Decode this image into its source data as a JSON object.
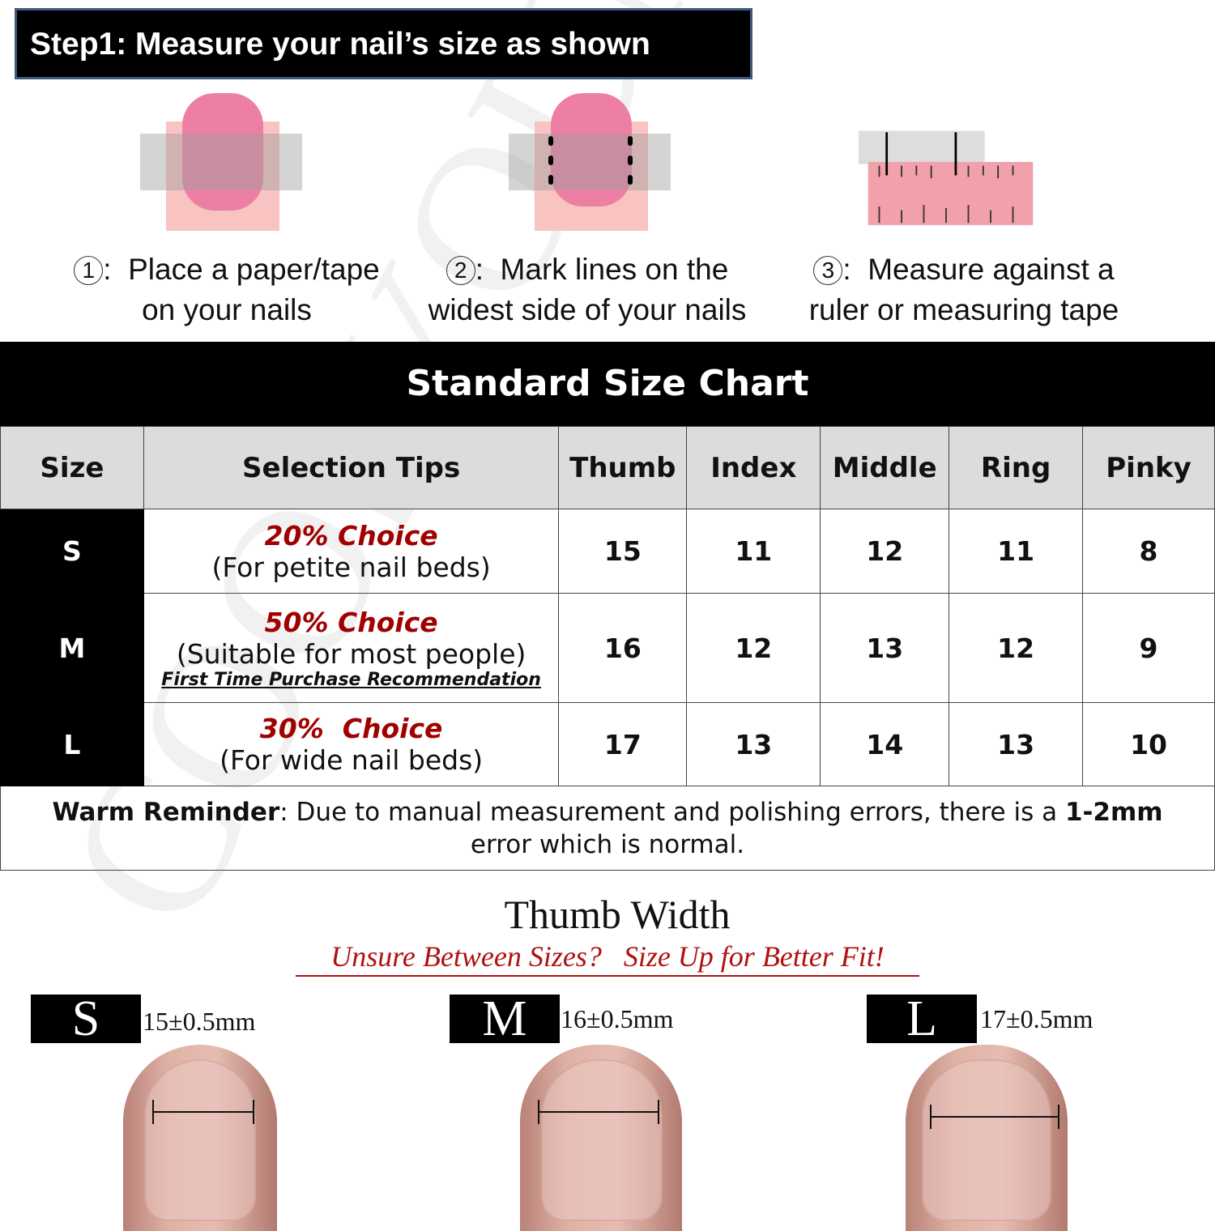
{
  "step_header": "Step1: Measure your nail’s size as shown",
  "steps": [
    {
      "num": "1",
      "text1": "Place a paper/tape",
      "text2": "on your nails"
    },
    {
      "num": "2",
      "text1": "Mark lines on the",
      "text2": "widest side of your nails"
    },
    {
      "num": "3",
      "text1": "Measure against a",
      "text2": "ruler or measuring tape"
    }
  ],
  "chart_title": "Standard Size Chart",
  "table": {
    "headers": [
      "Size",
      "Selection Tips",
      "Thumb",
      "Index",
      "Middle",
      "Ring",
      "Pinky"
    ],
    "rows": [
      {
        "size": "S",
        "choice": "20% Choice",
        "tip": "(For petite nail beds)",
        "values": [
          "15",
          "11",
          "12",
          "11",
          "8"
        ]
      },
      {
        "size": "M",
        "choice": "50% Choice",
        "tip": "(Suitable for most people)",
        "rec": "First Time Purchase Recommendation",
        "values": [
          "16",
          "12",
          "13",
          "12",
          "9"
        ]
      },
      {
        "size": "L",
        "choice": "30%  Choice",
        "tip": "(For wide nail beds)",
        "values": [
          "17",
          "13",
          "14",
          "13",
          "10"
        ]
      }
    ]
  },
  "reminder": {
    "bold": "Warm Reminder",
    "text": ": Due to manual measurement and polishing errors, there is a ",
    "bold2": "1-2mm",
    "text2": " error which is normal."
  },
  "thumb_width": {
    "title": "Thumb Width",
    "subtitle": "Unsure Between Sizes?   Size Up for Better Fit!",
    "sizes": [
      {
        "label": "S",
        "mm": "15±0.5mm"
      },
      {
        "label": "M",
        "mm": "16±0.5mm"
      },
      {
        "label": "L",
        "mm": "17±0.5mm"
      }
    ]
  },
  "watermark": "COOLYOUNG",
  "colors": {
    "accent_red": "#a00000",
    "header_bg": "#000000",
    "table_header_bg": "#dcdcdc",
    "nail_pink": "#ec7fa3"
  }
}
